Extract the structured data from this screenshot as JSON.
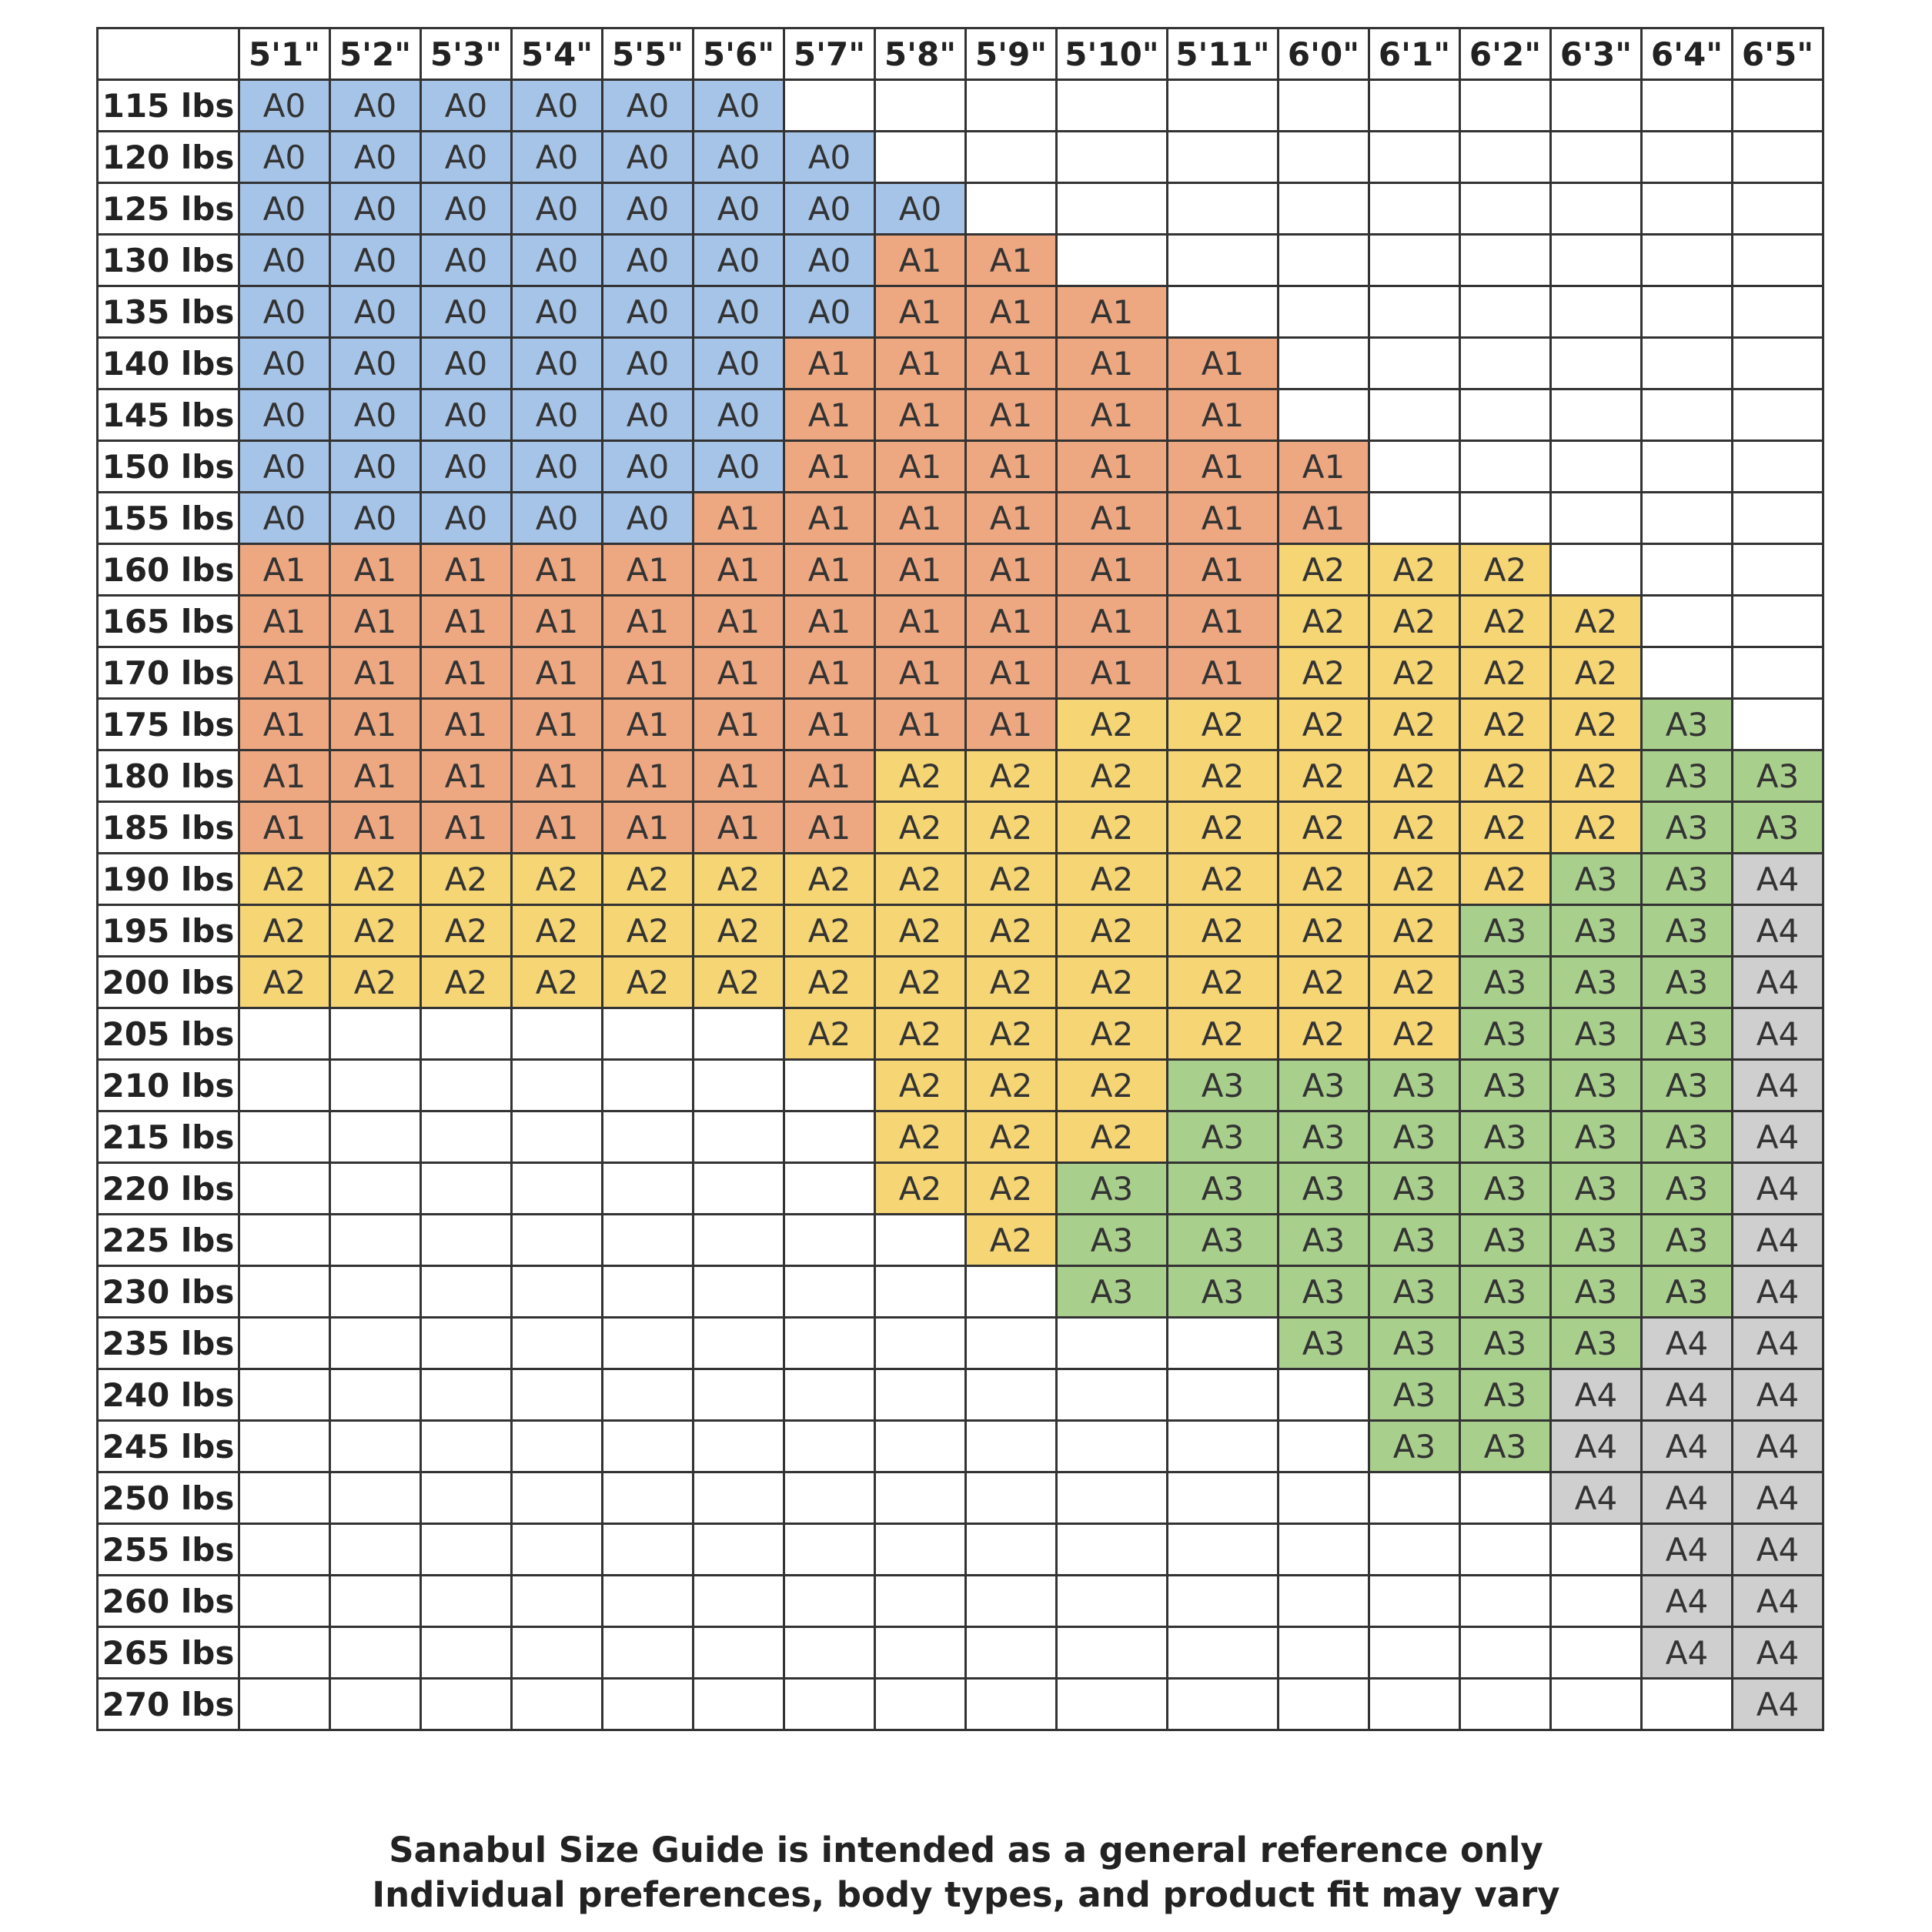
{
  "chart_data": {
    "type": "table",
    "title": "",
    "corner": "",
    "columns": [
      "5'1\"",
      "5'2\"",
      "5'3\"",
      "5'4\"",
      "5'5\"",
      "5'6\"",
      "5'7\"",
      "5'8\"",
      "5'9\"",
      "5'10\"",
      "5'11\"",
      "6'0\"",
      "6'1\"",
      "6'2\"",
      "6'3\"",
      "6'4\"",
      "6'5\""
    ],
    "rows": [
      {
        "label": "115 lbs",
        "cells": [
          "A0",
          "A0",
          "A0",
          "A0",
          "A0",
          "A0",
          "",
          "",
          "",
          "",
          "",
          "",
          "",
          "",
          "",
          "",
          ""
        ]
      },
      {
        "label": "120 lbs",
        "cells": [
          "A0",
          "A0",
          "A0",
          "A0",
          "A0",
          "A0",
          "A0",
          "",
          "",
          "",
          "",
          "",
          "",
          "",
          "",
          "",
          ""
        ]
      },
      {
        "label": "125 lbs",
        "cells": [
          "A0",
          "A0",
          "A0",
          "A0",
          "A0",
          "A0",
          "A0",
          "A0",
          "",
          "",
          "",
          "",
          "",
          "",
          "",
          "",
          ""
        ]
      },
      {
        "label": "130 lbs",
        "cells": [
          "A0",
          "A0",
          "A0",
          "A0",
          "A0",
          "A0",
          "A0",
          "A1",
          "A1",
          "",
          "",
          "",
          "",
          "",
          "",
          "",
          ""
        ]
      },
      {
        "label": "135 lbs",
        "cells": [
          "A0",
          "A0",
          "A0",
          "A0",
          "A0",
          "A0",
          "A0",
          "A1",
          "A1",
          "A1",
          "",
          "",
          "",
          "",
          "",
          "",
          ""
        ]
      },
      {
        "label": "140 lbs",
        "cells": [
          "A0",
          "A0",
          "A0",
          "A0",
          "A0",
          "A0",
          "A1",
          "A1",
          "A1",
          "A1",
          "A1",
          "",
          "",
          "",
          "",
          "",
          ""
        ]
      },
      {
        "label": "145 lbs",
        "cells": [
          "A0",
          "A0",
          "A0",
          "A0",
          "A0",
          "A0",
          "A1",
          "A1",
          "A1",
          "A1",
          "A1",
          "",
          "",
          "",
          "",
          "",
          ""
        ]
      },
      {
        "label": "150 lbs",
        "cells": [
          "A0",
          "A0",
          "A0",
          "A0",
          "A0",
          "A0",
          "A1",
          "A1",
          "A1",
          "A1",
          "A1",
          "A1",
          "",
          "",
          "",
          "",
          ""
        ]
      },
      {
        "label": "155 lbs",
        "cells": [
          "A0",
          "A0",
          "A0",
          "A0",
          "A0",
          "A1",
          "A1",
          "A1",
          "A1",
          "A1",
          "A1",
          "A1",
          "",
          "",
          "",
          "",
          ""
        ]
      },
      {
        "label": "160 lbs",
        "cells": [
          "A1",
          "A1",
          "A1",
          "A1",
          "A1",
          "A1",
          "A1",
          "A1",
          "A1",
          "A1",
          "A1",
          "A2",
          "A2",
          "A2",
          "",
          "",
          ""
        ]
      },
      {
        "label": "165 lbs",
        "cells": [
          "A1",
          "A1",
          "A1",
          "A1",
          "A1",
          "A1",
          "A1",
          "A1",
          "A1",
          "A1",
          "A1",
          "A2",
          "A2",
          "A2",
          "A2",
          "",
          ""
        ]
      },
      {
        "label": "170 lbs",
        "cells": [
          "A1",
          "A1",
          "A1",
          "A1",
          "A1",
          "A1",
          "A1",
          "A1",
          "A1",
          "A1",
          "A1",
          "A2",
          "A2",
          "A2",
          "A2",
          "",
          ""
        ]
      },
      {
        "label": "175 lbs",
        "cells": [
          "A1",
          "A1",
          "A1",
          "A1",
          "A1",
          "A1",
          "A1",
          "A1",
          "A1",
          "A2",
          "A2",
          "A2",
          "A2",
          "A2",
          "A2",
          "A3",
          ""
        ]
      },
      {
        "label": "180 lbs",
        "cells": [
          "A1",
          "A1",
          "A1",
          "A1",
          "A1",
          "A1",
          "A1",
          "A2",
          "A2",
          "A2",
          "A2",
          "A2",
          "A2",
          "A2",
          "A2",
          "A3",
          "A3"
        ]
      },
      {
        "label": "185 lbs",
        "cells": [
          "A1",
          "A1",
          "A1",
          "A1",
          "A1",
          "A1",
          "A1",
          "A2",
          "A2",
          "A2",
          "A2",
          "A2",
          "A2",
          "A2",
          "A2",
          "A3",
          "A3"
        ]
      },
      {
        "label": "190 lbs",
        "cells": [
          "A2",
          "A2",
          "A2",
          "A2",
          "A2",
          "A2",
          "A2",
          "A2",
          "A2",
          "A2",
          "A2",
          "A2",
          "A2",
          "A2",
          "A3",
          "A3",
          "A4"
        ]
      },
      {
        "label": "195 lbs",
        "cells": [
          "A2",
          "A2",
          "A2",
          "A2",
          "A2",
          "A2",
          "A2",
          "A2",
          "A2",
          "A2",
          "A2",
          "A2",
          "A2",
          "A3",
          "A3",
          "A3",
          "A4"
        ]
      },
      {
        "label": "200 lbs",
        "cells": [
          "A2",
          "A2",
          "A2",
          "A2",
          "A2",
          "A2",
          "A2",
          "A2",
          "A2",
          "A2",
          "A2",
          "A2",
          "A2",
          "A3",
          "A3",
          "A3",
          "A4"
        ]
      },
      {
        "label": "205 lbs",
        "cells": [
          "",
          "",
          "",
          "",
          "",
          "",
          "A2",
          "A2",
          "A2",
          "A2",
          "A2",
          "A2",
          "A2",
          "A3",
          "A3",
          "A3",
          "A4"
        ]
      },
      {
        "label": "210 lbs",
        "cells": [
          "",
          "",
          "",
          "",
          "",
          "",
          "",
          "A2",
          "A2",
          "A2",
          "A3",
          "A3",
          "A3",
          "A3",
          "A3",
          "A3",
          "A4"
        ]
      },
      {
        "label": "215 lbs",
        "cells": [
          "",
          "",
          "",
          "",
          "",
          "",
          "",
          "A2",
          "A2",
          "A2",
          "A3",
          "A3",
          "A3",
          "A3",
          "A3",
          "A3",
          "A4"
        ]
      },
      {
        "label": "220 lbs",
        "cells": [
          "",
          "",
          "",
          "",
          "",
          "",
          "",
          "A2",
          "A2",
          "A3",
          "A3",
          "A3",
          "A3",
          "A3",
          "A3",
          "A3",
          "A4"
        ]
      },
      {
        "label": "225 lbs",
        "cells": [
          "",
          "",
          "",
          "",
          "",
          "",
          "",
          "",
          "A2",
          "A3",
          "A3",
          "A3",
          "A3",
          "A3",
          "A3",
          "A3",
          "A4"
        ]
      },
      {
        "label": "230 lbs",
        "cells": [
          "",
          "",
          "",
          "",
          "",
          "",
          "",
          "",
          "",
          "A3",
          "A3",
          "A3",
          "A3",
          "A3",
          "A3",
          "A3",
          "A4"
        ]
      },
      {
        "label": "235 lbs",
        "cells": [
          "",
          "",
          "",
          "",
          "",
          "",
          "",
          "",
          "",
          "",
          "",
          "A3",
          "A3",
          "A3",
          "A3",
          "A4",
          "A4"
        ]
      },
      {
        "label": "240 lbs",
        "cells": [
          "",
          "",
          "",
          "",
          "",
          "",
          "",
          "",
          "",
          "",
          "",
          "",
          "A3",
          "A3",
          "A4",
          "A4",
          "A4"
        ]
      },
      {
        "label": "245 lbs",
        "cells": [
          "",
          "",
          "",
          "",
          "",
          "",
          "",
          "",
          "",
          "",
          "",
          "",
          "A3",
          "A3",
          "A4",
          "A4",
          "A4"
        ]
      },
      {
        "label": "250 lbs",
        "cells": [
          "",
          "",
          "",
          "",
          "",
          "",
          "",
          "",
          "",
          "",
          "",
          "",
          "",
          "",
          "A4",
          "A4",
          "A4"
        ]
      },
      {
        "label": "255 lbs",
        "cells": [
          "",
          "",
          "",
          "",
          "",
          "",
          "",
          "",
          "",
          "",
          "",
          "",
          "",
          "",
          "",
          "A4",
          "A4"
        ]
      },
      {
        "label": "260 lbs",
        "cells": [
          "",
          "",
          "",
          "",
          "",
          "",
          "",
          "",
          "",
          "",
          "",
          "",
          "",
          "",
          "",
          "A4",
          "A4"
        ]
      },
      {
        "label": "265 lbs",
        "cells": [
          "",
          "",
          "",
          "",
          "",
          "",
          "",
          "",
          "",
          "",
          "",
          "",
          "",
          "",
          "",
          "A4",
          "A4"
        ]
      },
      {
        "label": "270 lbs",
        "cells": [
          "",
          "",
          "",
          "",
          "",
          "",
          "",
          "",
          "",
          "",
          "",
          "",
          "",
          "",
          "",
          "",
          "A4"
        ]
      }
    ],
    "size_colors": {
      "A0": "#a6c4e8",
      "A1": "#eda882",
      "A2": "#f5d574",
      "A3": "#a9cf8d",
      "A4": "#cfcfcf"
    },
    "empty_color": "#ffffff",
    "grid_color": "#333333"
  },
  "footer": {
    "line1": "Sanabul Size Guide is intended as a general reference only",
    "line2": "Individual preferences, body types, and product fit may vary"
  }
}
